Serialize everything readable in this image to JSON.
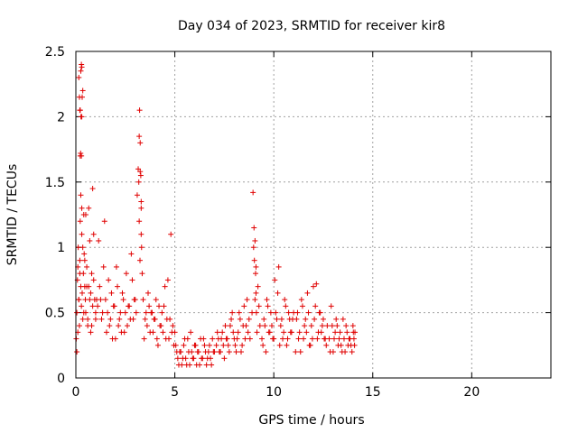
{
  "chart_data": {
    "type": "scatter",
    "title": "Day 034 of 2023, SRMTID for receiver kir8",
    "xlabel": "GPS time / hours",
    "ylabel": "SRMTID / TECUs",
    "xlim": [
      0,
      24
    ],
    "ylim": [
      0,
      2.5
    ],
    "xticks": [
      0,
      5,
      10,
      15,
      20
    ],
    "yticks": [
      0,
      0.5,
      1,
      1.5,
      2,
      2.5
    ],
    "xtick_labels": [
      "0",
      "5",
      "10",
      "15",
      "20"
    ],
    "ytick_labels": [
      "0",
      "0.5",
      "1",
      "1.5",
      "2",
      "2.5"
    ],
    "grid": true,
    "marker": "+",
    "color": "#e00000",
    "series": [
      {
        "name": "SRMTID",
        "x": [
          0.02,
          0.05,
          0.08,
          0.1,
          0.12,
          0.15,
          0.18,
          0.2,
          0.22,
          0.25,
          0.28,
          0.3,
          0.32,
          0.35,
          0.38,
          0.4,
          0.42,
          0.45,
          0.48,
          0.5,
          0.55,
          0.6,
          0.65,
          0.7,
          0.75,
          0.8,
          0.85,
          0.9,
          0.95,
          1.0,
          0.05,
          0.1,
          0.15,
          0.2,
          0.25,
          0.3,
          0.35,
          0.4,
          0.45,
          0.5,
          0.55,
          0.6,
          0.65,
          0.7,
          0.75,
          0.8,
          0.85,
          0.9,
          1.0,
          1.05,
          0.15,
          0.18,
          0.2,
          0.22,
          0.25,
          0.28,
          0.3,
          0.32,
          0.35,
          0.22,
          0.24,
          0.26,
          0.28,
          0.3,
          1.1,
          1.2,
          1.3,
          1.4,
          1.5,
          1.6,
          1.7,
          1.8,
          1.9,
          2.0,
          2.1,
          2.2,
          2.3,
          2.4,
          2.5,
          2.6,
          2.7,
          2.8,
          2.9,
          3.0,
          1.15,
          1.25,
          1.35,
          1.45,
          1.55,
          1.65,
          1.75,
          1.85,
          1.95,
          2.05,
          2.15,
          2.25,
          2.35,
          2.45,
          2.55,
          2.65,
          2.75,
          2.85,
          2.95,
          3.05,
          3.1,
          3.15,
          3.2,
          3.22,
          3.25,
          3.28,
          3.3,
          3.32,
          3.35,
          3.2,
          3.25,
          3.3,
          3.18,
          3.24,
          3.3,
          3.4,
          3.5,
          3.6,
          3.7,
          3.8,
          3.9,
          4.0,
          4.1,
          4.2,
          4.3,
          4.4,
          4.5,
          4.6,
          4.7,
          4.8,
          4.9,
          3.45,
          3.55,
          3.65,
          3.75,
          3.85,
          3.95,
          4.05,
          4.15,
          4.25,
          4.35,
          4.45,
          4.55,
          4.65,
          4.75,
          4.85,
          4.95,
          5.0,
          5.1,
          5.2,
          5.3,
          5.4,
          5.5,
          5.6,
          5.7,
          5.8,
          5.9,
          6.0,
          6.1,
          6.2,
          6.3,
          6.4,
          6.5,
          6.6,
          6.7,
          6.8,
          6.9,
          7.0,
          5.05,
          5.15,
          5.25,
          5.35,
          5.45,
          5.55,
          5.65,
          5.75,
          5.85,
          5.95,
          6.05,
          6.15,
          6.25,
          6.35,
          6.45,
          6.55,
          6.65,
          6.75,
          6.85,
          6.95,
          7.1,
          7.2,
          7.3,
          7.4,
          7.5,
          7.6,
          7.7,
          7.8,
          7.9,
          8.0,
          8.1,
          8.2,
          8.3,
          8.4,
          8.5,
          8.6,
          8.7,
          8.8,
          7.15,
          7.25,
          7.35,
          7.45,
          7.55,
          7.65,
          7.75,
          7.85,
          7.95,
          8.05,
          8.15,
          8.25,
          8.35,
          8.45,
          8.55,
          8.65,
          8.75,
          8.9,
          8.95,
          9.0,
          9.02,
          9.05,
          9.08,
          9.1,
          9.12,
          9.15,
          9.2,
          9.25,
          9.3,
          8.98,
          9.05,
          9.1,
          9.4,
          9.5,
          9.6,
          9.7,
          9.8,
          9.9,
          10.0,
          10.1,
          10.2,
          10.3,
          10.4,
          10.5,
          10.6,
          10.7,
          10.8,
          10.9,
          11.0,
          9.45,
          9.55,
          9.65,
          9.75,
          9.85,
          9.95,
          10.05,
          10.15,
          10.25,
          10.35,
          10.45,
          10.55,
          10.65,
          10.75,
          10.85,
          10.95,
          11.1,
          11.2,
          11.3,
          11.4,
          11.5,
          11.6,
          11.7,
          11.8,
          11.9,
          12.0,
          12.1,
          12.2,
          12.3,
          12.4,
          12.5,
          12.6,
          12.7,
          11.15,
          11.25,
          11.35,
          11.45,
          11.55,
          11.65,
          11.75,
          11.85,
          11.95,
          12.05,
          12.15,
          12.25,
          12.35,
          12.45,
          12.55,
          12.65,
          12.8,
          12.9,
          13.0,
          13.1,
          13.2,
          13.3,
          13.4,
          13.5,
          13.6,
          13.7,
          13.8,
          13.9,
          14.0,
          14.05,
          14.1,
          12.85,
          12.95,
          13.05,
          13.15,
          13.25,
          13.35,
          13.45,
          13.55,
          13.65,
          13.75,
          13.85,
          13.95,
          14.02,
          14.08
        ],
        "y": [
          0.3,
          0.5,
          0.75,
          0.85,
          1.0,
          0.6,
          0.4,
          0.9,
          1.2,
          0.7,
          0.55,
          1.1,
          0.65,
          0.45,
          0.8,
          1.25,
          0.95,
          0.7,
          0.6,
          0.5,
          0.85,
          0.45,
          0.7,
          1.05,
          0.65,
          0.4,
          0.55,
          0.75,
          0.6,
          0.5,
          0.2,
          0.35,
          0.6,
          0.8,
          1.4,
          1.3,
          1.0,
          0.5,
          0.9,
          1.25,
          0.7,
          0.4,
          1.3,
          0.6,
          0.35,
          0.8,
          1.45,
          1.1,
          0.45,
          0.6,
          2.3,
          2.15,
          2.05,
          1.7,
          2.35,
          2.4,
          2.0,
          2.15,
          2.2,
          2.05,
          1.72,
          2.0,
          1.7,
          2.38,
          0.55,
          0.7,
          0.45,
          0.85,
          0.6,
          0.5,
          0.4,
          0.65,
          0.55,
          0.3,
          0.7,
          0.45,
          0.35,
          0.6,
          0.5,
          0.4,
          0.55,
          0.95,
          0.45,
          0.6,
          1.05,
          0.6,
          0.5,
          1.2,
          0.35,
          0.75,
          0.45,
          0.3,
          0.55,
          0.85,
          0.4,
          0.5,
          0.65,
          0.35,
          0.8,
          0.55,
          0.45,
          0.75,
          0.6,
          0.5,
          1.4,
          1.6,
          1.85,
          2.05,
          1.8,
          1.55,
          1.3,
          1.0,
          0.8,
          1.2,
          1.58,
          1.1,
          1.5,
          0.9,
          1.35,
          0.6,
          0.45,
          0.4,
          0.55,
          0.5,
          0.35,
          0.45,
          0.3,
          0.55,
          0.4,
          0.35,
          0.7,
          0.45,
          0.3,
          1.1,
          0.4,
          0.3,
          0.5,
          0.65,
          0.35,
          0.5,
          0.45,
          0.6,
          0.25,
          0.4,
          0.5,
          0.55,
          0.3,
          0.75,
          0.45,
          0.35,
          0.25,
          0.35,
          0.2,
          0.1,
          0.2,
          0.15,
          0.3,
          0.1,
          0.2,
          0.35,
          0.15,
          0.25,
          0.1,
          0.2,
          0.3,
          0.15,
          0.25,
          0.1,
          0.2,
          0.15,
          0.3,
          0.2,
          0.25,
          0.15,
          0.2,
          0.1,
          0.25,
          0.15,
          0.3,
          0.1,
          0.2,
          0.15,
          0.25,
          0.2,
          0.1,
          0.15,
          0.3,
          0.2,
          0.15,
          0.25,
          0.1,
          0.2,
          0.25,
          0.3,
          0.2,
          0.35,
          0.15,
          0.3,
          0.25,
          0.4,
          0.5,
          0.3,
          0.2,
          0.35,
          0.45,
          0.25,
          0.55,
          0.4,
          0.35,
          0.3,
          0.35,
          0.2,
          0.3,
          0.25,
          0.4,
          0.3,
          0.2,
          0.45,
          0.35,
          0.25,
          0.3,
          0.5,
          0.2,
          0.4,
          0.3,
          0.6,
          0.45,
          0.5,
          1.42,
          1.15,
          0.9,
          1.05,
          0.8,
          0.65,
          0.5,
          0.35,
          0.7,
          0.55,
          0.4,
          1.0,
          0.6,
          0.85,
          0.3,
          0.45,
          0.2,
          0.55,
          0.35,
          0.4,
          0.3,
          0.5,
          0.65,
          0.25,
          0.45,
          0.35,
          0.55,
          0.3,
          0.45,
          0.35,
          0.5,
          0.25,
          0.4,
          0.6,
          0.35,
          0.5,
          0.3,
          0.75,
          0.45,
          0.85,
          0.4,
          0.3,
          0.6,
          0.25,
          0.5,
          0.35,
          0.45,
          0.2,
          0.5,
          0.35,
          0.6,
          0.3,
          0.45,
          0.65,
          0.25,
          0.4,
          0.7,
          0.55,
          0.3,
          0.5,
          0.35,
          0.45,
          0.3,
          0.4,
          0.45,
          0.3,
          0.2,
          0.55,
          0.4,
          0.35,
          0.5,
          0.25,
          0.3,
          0.45,
          0.72,
          0.35,
          0.5,
          0.4,
          0.3,
          0.25,
          0.3,
          0.55,
          0.2,
          0.35,
          0.4,
          0.3,
          0.25,
          0.45,
          0.2,
          0.35,
          0.3,
          0.25,
          0.4,
          0.3,
          0.35,
          0.2,
          0.4,
          0.3,
          0.45,
          0.25,
          0.35,
          0.2,
          0.3,
          0.4,
          0.25,
          0.3,
          0.2,
          0.35,
          0.25
        ]
      }
    ]
  }
}
